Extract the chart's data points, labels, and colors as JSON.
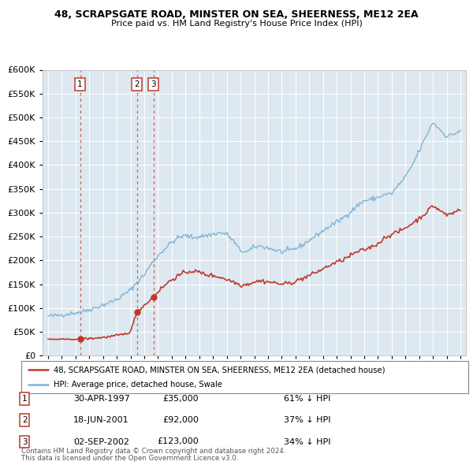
{
  "title1": "48, SCRAPSGATE ROAD, MINSTER ON SEA, SHEERNESS, ME12 2EA",
  "title2": "Price paid vs. HM Land Registry's House Price Index (HPI)",
  "legend_line1": "48, SCRAPSGATE ROAD, MINSTER ON SEA, SHEERNESS, ME12 2EA (detached house)",
  "legend_line2": "HPI: Average price, detached house, Swale",
  "footer1": "Contains HM Land Registry data © Crown copyright and database right 2024.",
  "footer2": "This data is licensed under the Open Government Licence v3.0.",
  "sales": [
    {
      "num": 1,
      "date": "30-APR-1997",
      "price": 35000,
      "pct": "61%",
      "year": 1997.33
    },
    {
      "num": 2,
      "date": "18-JUN-2001",
      "price": 92000,
      "pct": "37%",
      "year": 2001.46
    },
    {
      "num": 3,
      "date": "02-SEP-2002",
      "price": 123000,
      "pct": "34%",
      "year": 2002.67
    }
  ],
  "sale_prices": [
    35000,
    92000,
    123000
  ],
  "sale_years": [
    1997.33,
    2001.46,
    2002.67
  ],
  "ylim": [
    0,
    600000
  ],
  "xlim_start": 1994.6,
  "xlim_end": 2025.4,
  "bg_color": "#dde8f0",
  "red_color": "#c0392b",
  "blue_color": "#7fb3d6",
  "grid_color": "#ffffff"
}
